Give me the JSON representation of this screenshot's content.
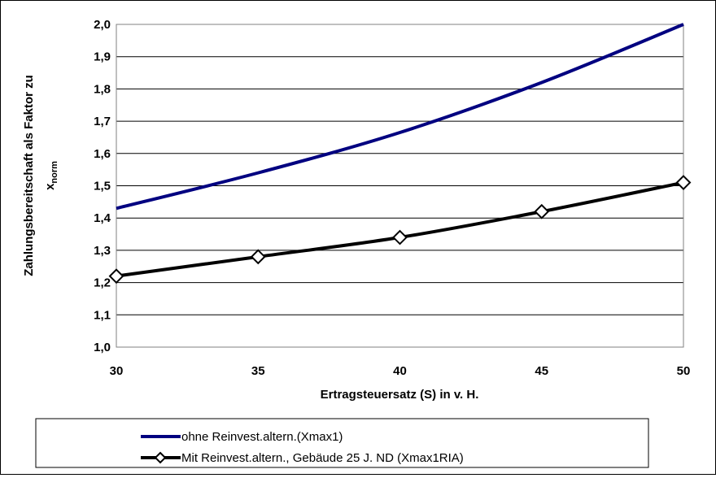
{
  "chart_data": {
    "type": "line",
    "xlabel": "Ertragsteuersatz (S) in v. H.",
    "ylabel_main": "Zahlungsbereitschaft als Faktor zu",
    "ylabel_sub_base": "x",
    "ylabel_sub_index": "norm",
    "x": [
      30,
      35,
      40,
      45,
      50
    ],
    "x_tick_labels": [
      "30",
      "35",
      "40",
      "45",
      "50"
    ],
    "xlim": [
      30,
      50
    ],
    "ylim": [
      1.0,
      2.0
    ],
    "y_ticks": [
      1.0,
      1.1,
      1.2,
      1.3,
      1.4,
      1.5,
      1.6,
      1.7,
      1.8,
      1.9,
      2.0
    ],
    "y_tick_labels": [
      "1,0",
      "1,1",
      "1,2",
      "1,3",
      "1,4",
      "1,5",
      "1,6",
      "1,7",
      "1,8",
      "1,9",
      "2,0"
    ],
    "grid": "horizontal",
    "legend_position": "bottom",
    "series": [
      {
        "name": "ohne Reinvest.altern.(Xmax1)",
        "values": [
          1.43,
          1.54,
          1.665,
          1.82,
          2.0
        ],
        "color": "#000080",
        "marker": "none"
      },
      {
        "name": "Mit Reinvest.altern., Gebäude 25 J. ND (Xmax1RIA)",
        "values": [
          1.22,
          1.28,
          1.34,
          1.42,
          1.51
        ],
        "color": "#000000",
        "marker": "diamond"
      }
    ]
  }
}
